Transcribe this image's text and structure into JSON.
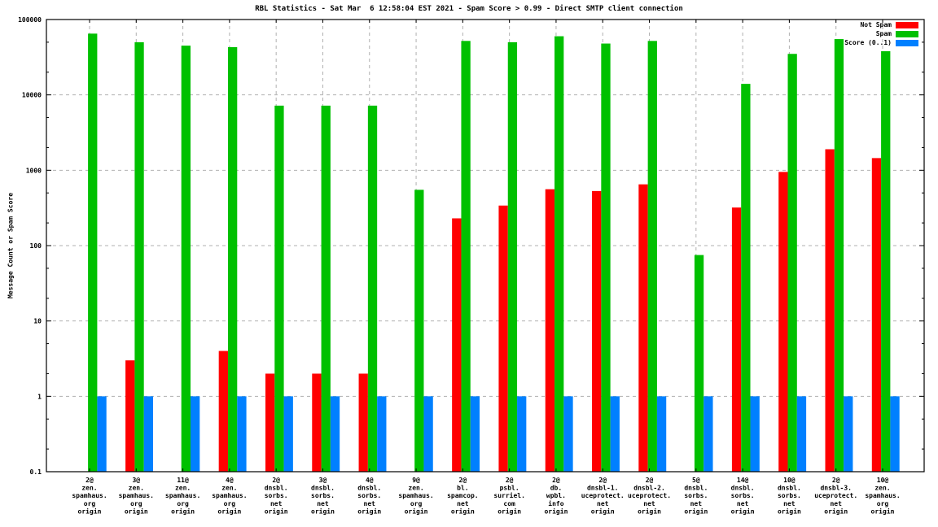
{
  "title": "RBL Statistics - Sat Mar  6 12:58:04 EST 2021 - Spam Score > 0.99 - Direct SMTP client connection",
  "chart_data": {
    "type": "bar",
    "y_scale": "log",
    "ylim": [
      0.1,
      100000
    ],
    "ylabel": "Message Count or Spam Score",
    "y_tick_labels": [
      "0.1",
      "1",
      "10",
      "100",
      "1000",
      "10000",
      "100000"
    ],
    "grid": true,
    "legend_position": "top-right-inside",
    "axis_color": "#000000",
    "grid_color": "#b0b0b0",
    "categories": [
      [
        "2@",
        "zen.",
        "spamhaus.",
        "org",
        "origin"
      ],
      [
        "3@",
        "zen.",
        "spamhaus.",
        "org",
        "origin"
      ],
      [
        "11@",
        "zen.",
        "spamhaus.",
        "org",
        "origin"
      ],
      [
        "4@",
        "zen.",
        "spamhaus.",
        "org",
        "origin"
      ],
      [
        "2@",
        "dnsbl.",
        "sorbs.",
        "net",
        "origin"
      ],
      [
        "3@",
        "dnsbl.",
        "sorbs.",
        "net",
        "origin"
      ],
      [
        "4@",
        "dnsbl.",
        "sorbs.",
        "net",
        "origin"
      ],
      [
        "9@",
        "zen.",
        "spamhaus.",
        "org",
        "origin"
      ],
      [
        "2@",
        "bl.",
        "spamcop.",
        "net",
        "origin"
      ],
      [
        "2@",
        "psbl.",
        "surriel.",
        "com",
        "origin"
      ],
      [
        "2@",
        "db.",
        "wpbl.",
        "info",
        "origin"
      ],
      [
        "2@",
        "dnsbl-1.",
        "uceprotect.",
        "net",
        "origin"
      ],
      [
        "2@",
        "dnsbl-2.",
        "uceprotect.",
        "net",
        "origin"
      ],
      [
        "5@",
        "dnsbl.",
        "sorbs.",
        "net",
        "origin"
      ],
      [
        "14@",
        "dnsbl.",
        "sorbs.",
        "net",
        "origin"
      ],
      [
        "10@",
        "dnsbl.",
        "sorbs.",
        "net",
        "origin"
      ],
      [
        "2@",
        "dnsbl-3.",
        "uceprotect.",
        "net",
        "origin"
      ],
      [
        "10@",
        "zen.",
        "spamhaus.",
        "org",
        "origin"
      ]
    ],
    "series": [
      {
        "name": "Not Spam",
        "color": "#ff0000",
        "values": [
          0,
          3,
          0,
          4,
          2,
          2,
          2,
          0,
          230,
          340,
          560,
          530,
          650,
          0,
          320,
          950,
          1900,
          1450
        ]
      },
      {
        "name": "Spam",
        "color": "#00c000",
        "values": [
          65000,
          50000,
          45000,
          43000,
          7200,
          7200,
          7200,
          550,
          52000,
          50000,
          60000,
          48000,
          52000,
          75,
          14000,
          35000,
          55000,
          38000
        ]
      },
      {
        "name": "Score (0..1)",
        "color": "#0080ff",
        "values": [
          1,
          1,
          1,
          1,
          1,
          1,
          1,
          1,
          1,
          1,
          1,
          1,
          1,
          1,
          1,
          1,
          1,
          1
        ]
      }
    ]
  }
}
